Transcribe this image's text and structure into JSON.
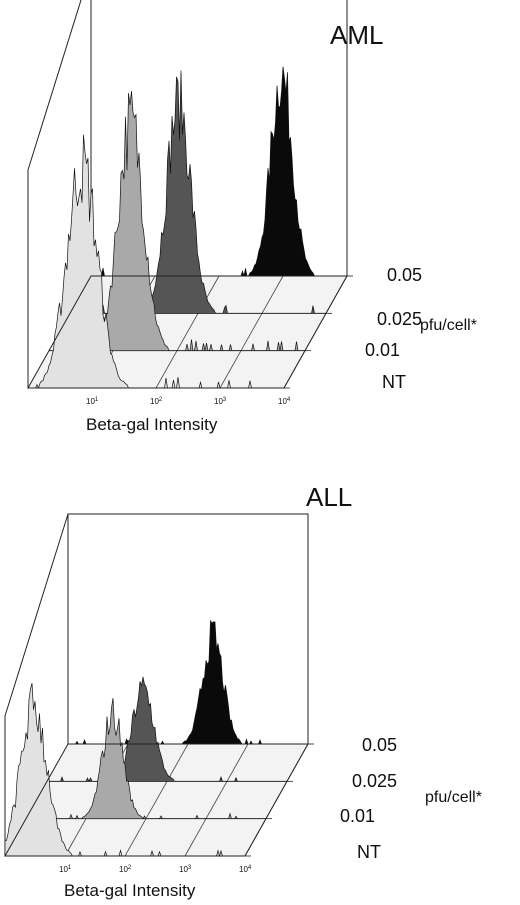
{
  "chart_data": [
    {
      "type": "area",
      "panel_label": "AML",
      "xlabel": "Beta-gal Intensity",
      "x_scale": "log",
      "xlim": [
        1,
        10000
      ],
      "x_ticks": [
        {
          "base": "10",
          "exp": "1"
        },
        {
          "base": "10",
          "exp": "2"
        },
        {
          "base": "10",
          "exp": "3"
        },
        {
          "base": "10",
          "exp": "4"
        }
      ],
      "z_label": "pfu/cell*",
      "series": [
        {
          "name": "NT",
          "color": "#e2e2e2",
          "peak_x": 7,
          "spread": 0.24,
          "height": 0.97
        },
        {
          "name": "0.01",
          "color": "#a9a9a9",
          "peak_x": 19,
          "spread": 0.2,
          "height": 1.0
        },
        {
          "name": "0.025",
          "color": "#555555",
          "peak_x": 50,
          "spread": 0.19,
          "height": 0.92
        },
        {
          "name": "0.05",
          "color": "#0a0a0a",
          "peak_x": 950,
          "spread": 0.17,
          "height": 0.88
        }
      ]
    },
    {
      "type": "area",
      "panel_label": "ALL",
      "xlabel": "Beta-gal Intensity",
      "x_scale": "log",
      "xlim": [
        1,
        10000
      ],
      "x_ticks": [
        {
          "base": "10",
          "exp": "1"
        },
        {
          "base": "10",
          "exp": "2"
        },
        {
          "base": "10",
          "exp": "3"
        },
        {
          "base": "10",
          "exp": "4"
        }
      ],
      "z_label": "pfu/cell*",
      "series": [
        {
          "name": "NT",
          "color": "#e2e2e2",
          "peak_x": 3,
          "spread": 0.22,
          "height": 1.0
        },
        {
          "name": "0.01",
          "color": "#a9a9a9",
          "peak_x": 28,
          "spread": 0.17,
          "height": 0.7
        },
        {
          "name": "0.025",
          "color": "#555555",
          "peak_x": 40,
          "spread": 0.18,
          "height": 0.62
        },
        {
          "name": "0.05",
          "color": "#0a0a0a",
          "peak_x": 260,
          "spread": 0.17,
          "height": 0.72
        }
      ]
    }
  ]
}
